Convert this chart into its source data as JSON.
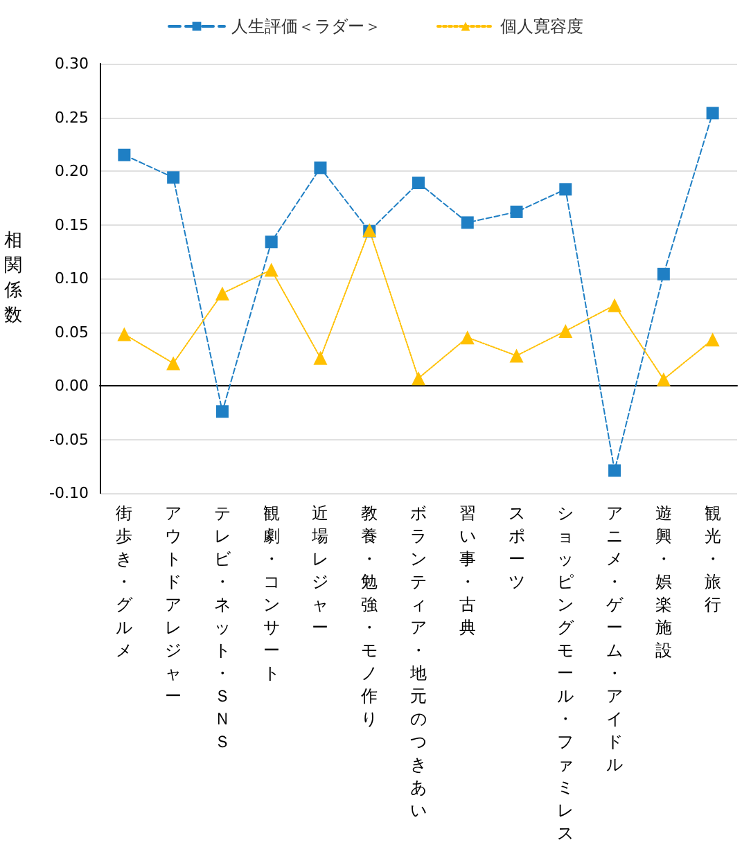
{
  "chart_data": {
    "type": "line",
    "ylabel": "相関係数",
    "categories": [
      "街歩き・グルメ",
      "アウトドアレジャー",
      "テレビ・ネット・ＳＮＳ",
      "観劇・コンサート",
      "近場レジャー",
      "教養・勉強・モノ作り",
      "ボランティア・地元のつきあい",
      "習い事・古典",
      "スポーツ",
      "ショッピングモール・ファミレス",
      "アニメ・ゲーム・アイドル",
      "遊興・娯楽施設",
      "観光・旅行"
    ],
    "series": [
      {
        "name": "人生評価＜ラダー＞",
        "color": "#1f7fc4",
        "marker": "square",
        "line_style": "dashed",
        "values": [
          0.215,
          0.194,
          -0.024,
          0.134,
          0.203,
          0.144,
          0.189,
          0.152,
          0.162,
          0.183,
          -0.079,
          0.104,
          0.254
        ]
      },
      {
        "name": "個人寛容度",
        "color": "#ffc000",
        "marker": "triangle",
        "line_style": "dotted",
        "values": [
          0.048,
          0.021,
          0.086,
          0.108,
          0.026,
          0.145,
          0.007,
          0.045,
          0.028,
          0.051,
          0.075,
          0.006,
          0.043
        ]
      }
    ],
    "ylim": [
      -0.1,
      0.3
    ],
    "yticks": [
      {
        "value": -0.1,
        "label": "-0.10"
      },
      {
        "value": -0.05,
        "label": "-0.05"
      },
      {
        "value": 0,
        "label": "0.00"
      },
      {
        "value": 0.05,
        "label": "0.05"
      },
      {
        "value": 0.1,
        "label": "0.10"
      },
      {
        "value": 0.15,
        "label": "0.15"
      },
      {
        "value": 0.2,
        "label": "0.20"
      },
      {
        "value": 0.25,
        "label": "0.25"
      },
      {
        "value": 0.3,
        "label": "0.30"
      }
    ],
    "grid": "y",
    "legend": "top"
  }
}
